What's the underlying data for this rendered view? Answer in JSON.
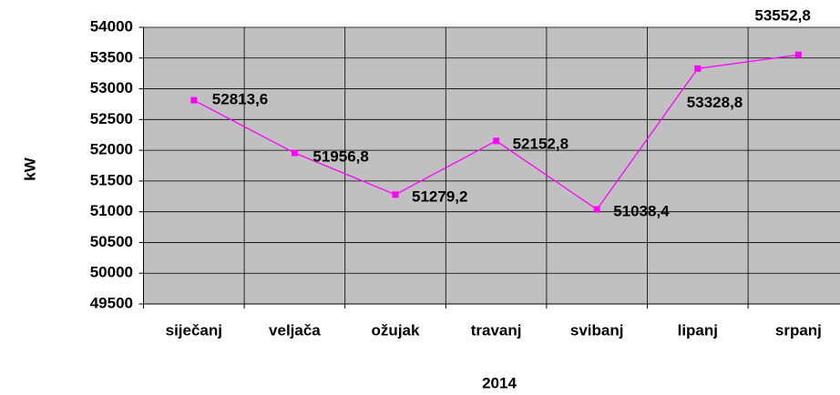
{
  "chart_data": {
    "type": "line",
    "x_label": "2014",
    "y_label": "kW",
    "categories": [
      "siječanj",
      "veljača",
      "ožujak",
      "travanj",
      "svibanj",
      "lipanj",
      "srpanj"
    ],
    "series": [
      {
        "name": "kW",
        "color": "#ff00ff",
        "values": [
          52813.6,
          51956.8,
          51279.2,
          52152.8,
          51038.4,
          53328.8,
          53552.8
        ],
        "value_labels": [
          "52813,6",
          "51956,8",
          "51279,2",
          "52152,8",
          "51038,4",
          "53328,8",
          "53552,8"
        ]
      }
    ],
    "ylim": [
      49500,
      54000
    ],
    "yticks": [
      49500,
      50000,
      50500,
      51000,
      51500,
      52000,
      52500,
      53000,
      53500,
      54000
    ],
    "grid": true,
    "plot_background": "#c0c0c0"
  }
}
